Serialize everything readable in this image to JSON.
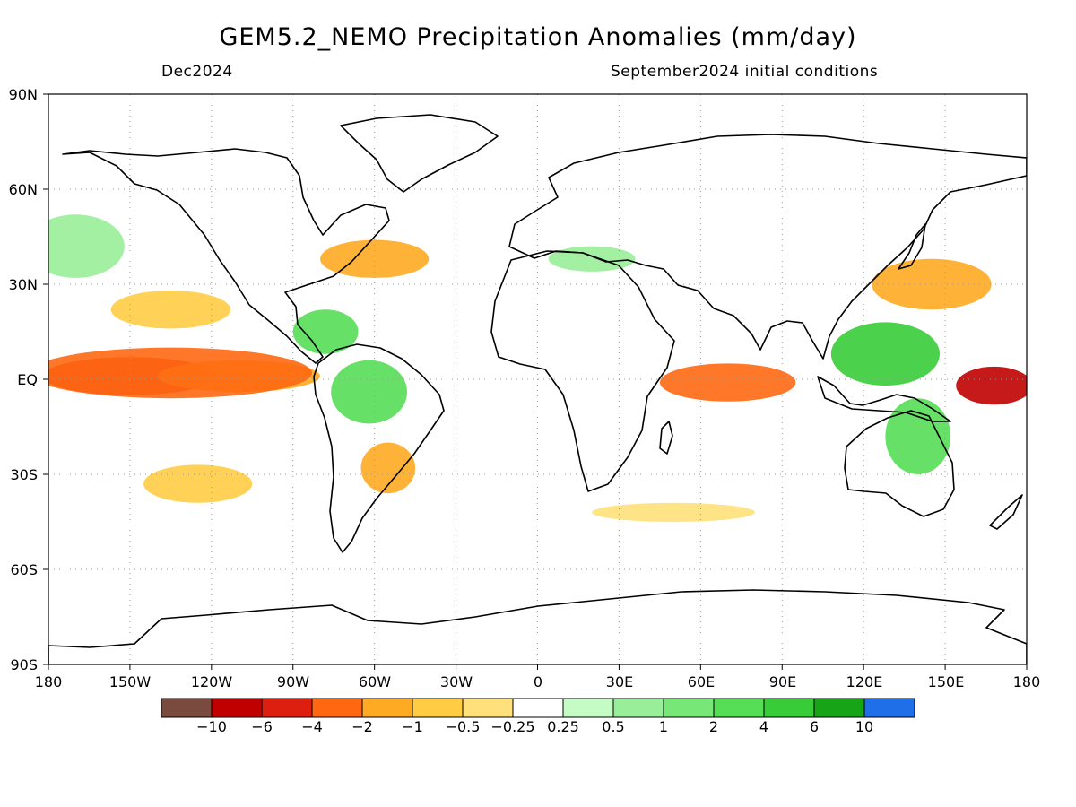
{
  "header": {
    "title": "GEM5.2_NEMO Precipitation Anomalies (mm/day)",
    "subtitle_left": "Dec2024",
    "subtitle_right": "September2024 initial conditions"
  },
  "map": {
    "lat_labels": [
      "90N",
      "60N",
      "30N",
      "EQ",
      "30S",
      "60S",
      "90S"
    ],
    "lon_labels": [
      "180",
      "150W",
      "120W",
      "90W",
      "60W",
      "30W",
      "0",
      "30E",
      "60E",
      "90E",
      "120E",
      "150E",
      "180"
    ],
    "lat_values": [
      90,
      60,
      30,
      0,
      -30,
      -60,
      -90
    ],
    "lon_values": [
      -180,
      -150,
      -120,
      -90,
      -60,
      -30,
      0,
      30,
      60,
      90,
      120,
      150,
      180
    ],
    "lon_range": [
      -180,
      180
    ],
    "lat_range": [
      -90,
      90
    ],
    "grid": "dotted every 30 degrees",
    "anomaly_regions": [
      {
        "name": "central-pacific-dry",
        "lat": 1,
        "lon": -150,
        "dlat": 6,
        "dlon": 32,
        "color": "#dd1f0f"
      },
      {
        "name": "east-pacific-dry",
        "lat": 1,
        "lon": -110,
        "dlat": 5,
        "dlon": 30,
        "color": "#ffaa22"
      },
      {
        "name": "equatorial-band-dry",
        "lat": 2,
        "lon": -135,
        "dlat": 8,
        "dlon": 52,
        "color": "#ff6811"
      },
      {
        "name": "west-pacific-dry",
        "lat": -2,
        "lon": 168,
        "dlat": 6,
        "dlon": 14,
        "color": "#c00000"
      },
      {
        "name": "indian-ocean-dry",
        "lat": -1,
        "lon": 70,
        "dlat": 6,
        "dlon": 25,
        "color": "#ff6811"
      },
      {
        "name": "maritime-continent-wet",
        "lat": 8,
        "lon": 128,
        "dlat": 10,
        "dlon": 20,
        "color": "#38cc38"
      },
      {
        "name": "australia-wet",
        "lat": -18,
        "lon": 140,
        "dlat": 12,
        "dlon": 12,
        "color": "#55dd55"
      },
      {
        "name": "amazon-wet",
        "lat": -4,
        "lon": -62,
        "dlat": 10,
        "dlon": 14,
        "color": "#55dd55"
      },
      {
        "name": "subtropical-south-america-dry",
        "lat": -28,
        "lon": -55,
        "dlat": 8,
        "dlon": 10,
        "color": "#ffaa22"
      },
      {
        "name": "gulf-stream-dry",
        "lat": 38,
        "lon": -60,
        "dlat": 6,
        "dlon": 20,
        "color": "#ffaa22"
      },
      {
        "name": "kuroshio-dry",
        "lat": 30,
        "lon": 145,
        "dlat": 8,
        "dlon": 22,
        "color": "#ffaa22"
      },
      {
        "name": "north-pacific-wet",
        "lat": 42,
        "lon": -170,
        "dlat": 10,
        "dlon": 18,
        "color": "#99ee99"
      },
      {
        "name": "south-pacific-dry",
        "lat": -33,
        "lon": -125,
        "dlat": 6,
        "dlon": 20,
        "color": "#ffcc44"
      },
      {
        "name": "southern-ocean-dry",
        "lat": -42,
        "lon": 50,
        "dlat": 3,
        "dlon": 30,
        "color": "#ffe07a"
      },
      {
        "name": "caribbean-wet",
        "lat": 15,
        "lon": -78,
        "dlat": 7,
        "dlon": 12,
        "color": "#55dd55"
      },
      {
        "name": "mediterranean-wet",
        "lat": 38,
        "lon": 20,
        "dlat": 4,
        "dlon": 16,
        "color": "#99ee99"
      },
      {
        "name": "hawaii-dry",
        "lat": 22,
        "lon": -135,
        "dlat": 6,
        "dlon": 22,
        "color": "#ffcc44"
      }
    ]
  },
  "legend": {
    "colors": [
      "#7a4a3e",
      "#c00000",
      "#dd1f0f",
      "#ff6811",
      "#ffaa22",
      "#ffcc44",
      "#ffe07a",
      "#ffffff",
      "#c5fbc5",
      "#99ee99",
      "#77e877",
      "#55dd55",
      "#38cc38",
      "#17a517",
      "#1f6fe8"
    ],
    "labels": [
      "−10",
      "−6",
      "−4",
      "−2",
      "−1",
      "−0.5",
      "−0.25",
      "0.25",
      "0.5",
      "1",
      "2",
      "4",
      "6",
      "10"
    ]
  }
}
